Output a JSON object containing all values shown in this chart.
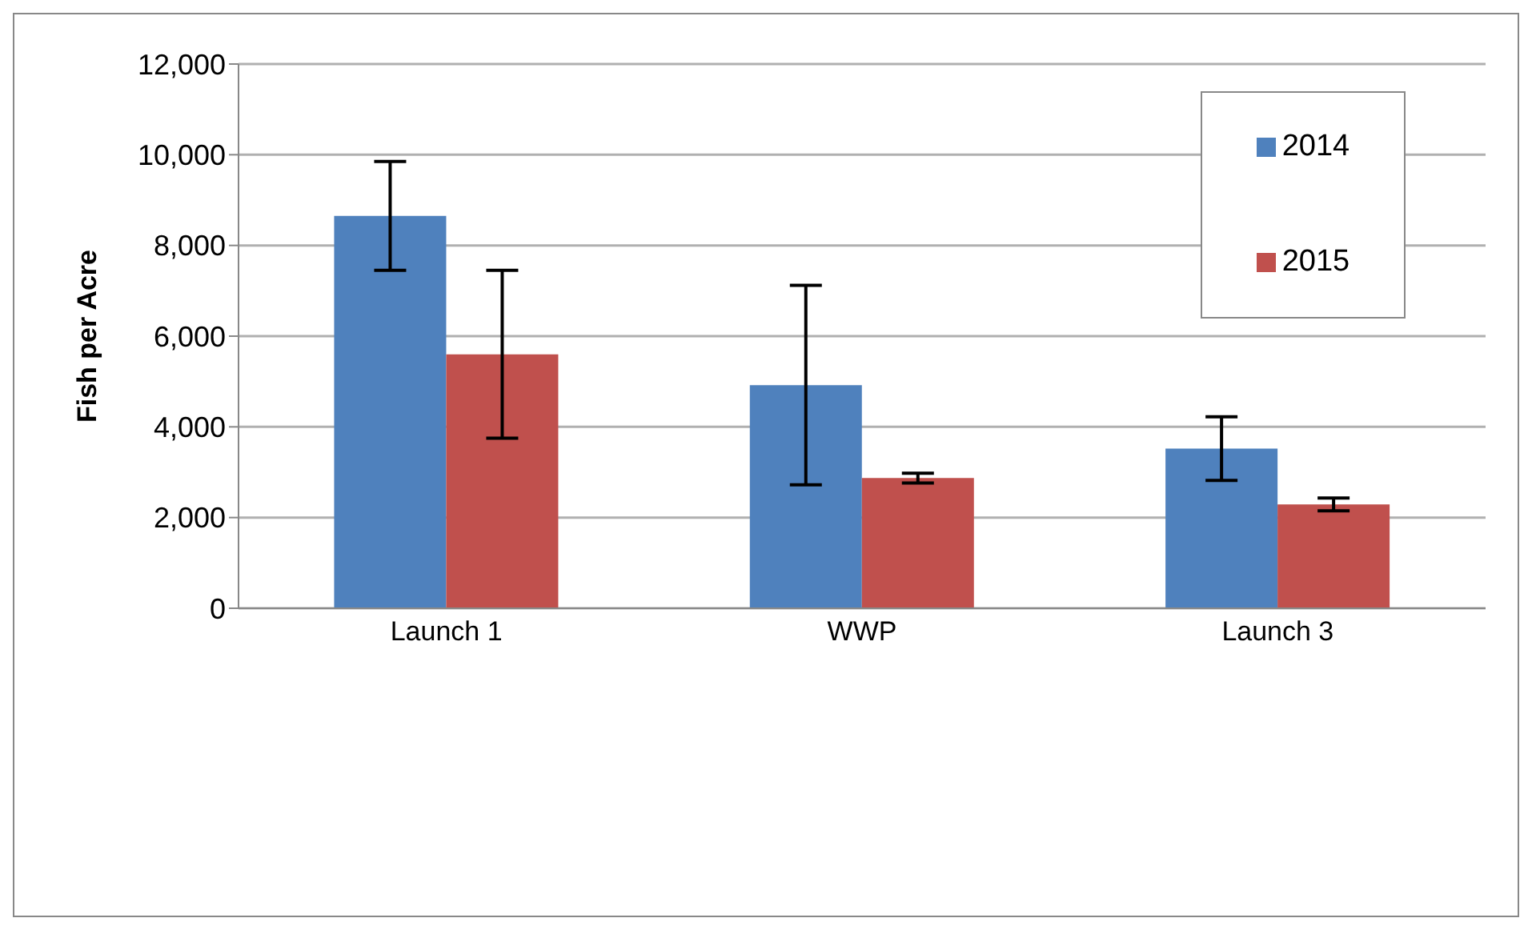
{
  "chart_data": {
    "type": "bar",
    "ylabel": "Fish per Acre",
    "categories": [
      "Launch 1",
      "WWP",
      "Launch 3"
    ],
    "series": [
      {
        "name": "2014",
        "color": "#4f81bd",
        "values": [
          8650,
          4920,
          3520
        ],
        "errors": [
          1200,
          2200,
          700
        ]
      },
      {
        "name": "2015",
        "color": "#c0504d",
        "values": [
          5600,
          2870,
          2290
        ],
        "errors": [
          1850,
          110,
          140
        ]
      }
    ],
    "ylim": [
      0,
      12000
    ],
    "yticks": [
      {
        "value": 0,
        "label": "0"
      },
      {
        "value": 2000,
        "label": "2,000"
      },
      {
        "value": 4000,
        "label": "4,000"
      },
      {
        "value": 6000,
        "label": "6,000"
      },
      {
        "value": 8000,
        "label": "8,000"
      },
      {
        "value": 10000,
        "label": "10,000"
      },
      {
        "value": 12000,
        "label": "12,000"
      }
    ],
    "grid": "y",
    "legend": "top right"
  }
}
